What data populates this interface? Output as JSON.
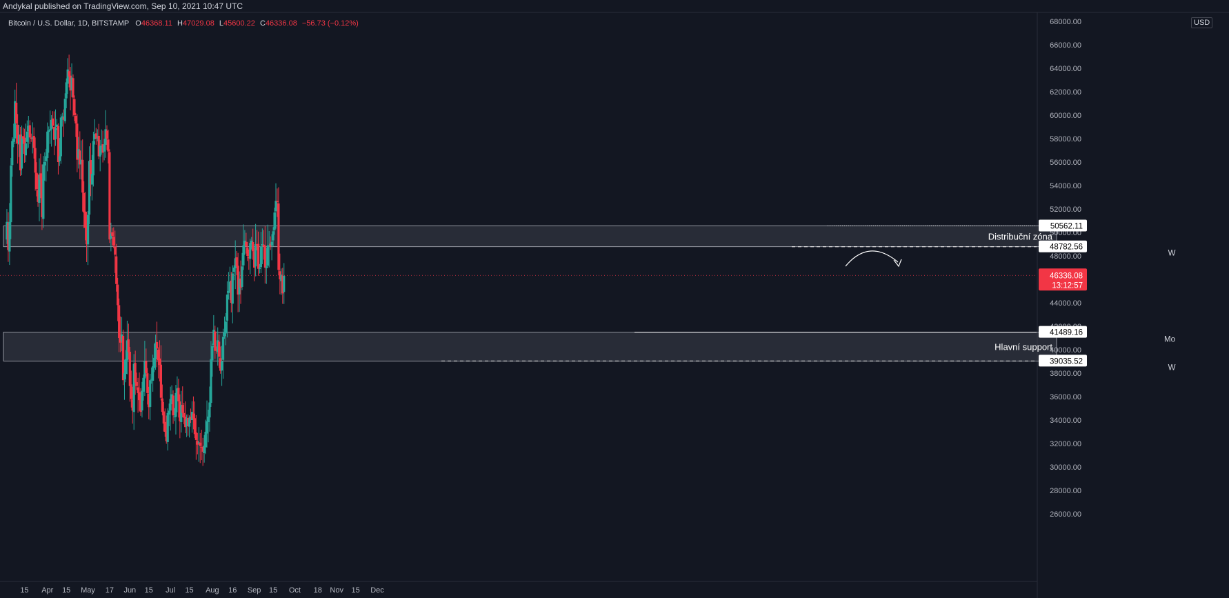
{
  "header": {
    "published_by": "Andykal published on TradingView.com, Sep 10, 2021 10:47 UTC"
  },
  "legend": {
    "symbol": "Bitcoin / U.S. Dollar, 1D, BITSTAMP",
    "open_label": "O",
    "open": "46368.11",
    "high_label": "H",
    "high": "47029.08",
    "low_label": "L",
    "low": "45600.22",
    "close_label": "C",
    "close": "46336.08",
    "change": "−56.73 (−0.12%)"
  },
  "currency": "USD",
  "colors": {
    "background": "#131722",
    "up": "#26a69a",
    "down": "#f23645",
    "zone_fill": "#2a2e39",
    "zone_border": "#b2b5be",
    "price_label_bg": "#ffffff",
    "current_price_bg": "#f23645"
  },
  "chart_data": {
    "type": "candlestick",
    "title": "Bitcoin / U.S. Dollar, 1D, BITSTAMP",
    "ylim": [
      26000,
      68000
    ],
    "y_ticks": [
      26000,
      28000,
      30000,
      32000,
      34000,
      36000,
      38000,
      40000,
      42000,
      44000,
      46000,
      48000,
      50000,
      52000,
      54000,
      56000,
      58000,
      60000,
      62000,
      64000,
      66000,
      68000
    ],
    "x_ticks": [
      {
        "label": "15",
        "date": "2021-03-15"
      },
      {
        "label": "Apr",
        "date": "2021-04-01"
      },
      {
        "label": "15",
        "date": "2021-04-15"
      },
      {
        "label": "May",
        "date": "2021-05-01"
      },
      {
        "label": "17",
        "date": "2021-05-17"
      },
      {
        "label": "Jun",
        "date": "2021-06-01"
      },
      {
        "label": "15",
        "date": "2021-06-15"
      },
      {
        "label": "Jul",
        "date": "2021-07-01"
      },
      {
        "label": "15",
        "date": "2021-07-15"
      },
      {
        "label": "Aug",
        "date": "2021-08-01"
      },
      {
        "label": "16",
        "date": "2021-08-16"
      },
      {
        "label": "Sep",
        "date": "2021-09-01"
      },
      {
        "label": "15",
        "date": "2021-09-15"
      },
      {
        "label": "Oct",
        "date": "2021-10-01"
      },
      {
        "label": "18",
        "date": "2021-10-18"
      },
      {
        "label": "Nov",
        "date": "2021-11-01"
      },
      {
        "label": "15",
        "date": "2021-11-15"
      },
      {
        "label": "Dec",
        "date": "2021-12-01"
      }
    ],
    "anchor_close": [
      49400,
      50900,
      48500,
      50900,
      55700,
      57800,
      58000,
      61200,
      59300,
      57600,
      58300,
      55300,
      58200,
      58000,
      56700,
      57600,
      58600,
      59100,
      58100,
      58000,
      58100,
      57200,
      55100,
      53700,
      52600,
      54900,
      54500,
      51300,
      55800,
      56000,
      56500,
      58600,
      58700,
      58800,
      59600,
      59100,
      57900,
      58900,
      59200,
      56000,
      56500,
      59800,
      59900,
      59600,
      61400,
      62800,
      63900,
      63300,
      62100,
      63200,
      61500,
      60000,
      59300,
      56200,
      57100,
      55800,
      56200,
      53400,
      51700,
      50400,
      49000,
      51500,
      56100,
      54100,
      55000,
      57800,
      58400,
      58000,
      58100,
      56500,
      57400,
      57400,
      56800,
      57500,
      58800,
      58000,
      56900,
      49400,
      49900,
      49700,
      48900,
      48100,
      45600,
      43800,
      41000,
      40600,
      41300,
      37400,
      38000,
      39200,
      40800,
      39800,
      36900,
      35800,
      34800,
      38800,
      37200,
      36900,
      36300,
      35700,
      34700,
      36500,
      37600,
      39000,
      38000,
      36300,
      35100,
      37400,
      37500,
      38600,
      39300,
      40600,
      40100,
      39100,
      38700,
      35900,
      34700,
      33700,
      33000,
      32200,
      34600,
      34800,
      35800,
      36200,
      34400,
      34300,
      36300,
      36700,
      35600,
      33900,
      35300,
      34600,
      34200,
      33400,
      34100,
      33500,
      34200,
      34000,
      34700,
      34100,
      32800,
      32300,
      31900,
      32100,
      31800,
      31700,
      31300,
      31800,
      33000,
      33900,
      34300,
      35500,
      39200,
      40300,
      41700,
      39900,
      39900,
      40800,
      39400,
      38200,
      39000,
      41100,
      41500,
      42400,
      44700,
      45000,
      45800,
      44000,
      46500,
      47000,
      47800,
      47100,
      44700,
      46000,
      45300,
      47100,
      48900,
      49300,
      48800,
      48000,
      47800,
      49100,
      49300,
      48400,
      47000,
      49000,
      48900,
      46900,
      47000,
      48800,
      49000,
      48800,
      47000,
      47100,
      48900,
      48900,
      48800,
      49200,
      50100,
      51700,
      52700,
      52600,
      46800,
      46000,
      46400,
      44800,
      46300
    ]
  },
  "zones": {
    "distribution": {
      "label": "Distribuční zóna",
      "top": 50562.11,
      "bottom": 48782.56,
      "top_label": "50562.11",
      "bottom_label": "48782.56",
      "tag": "W"
    },
    "support": {
      "label": "Hlavní support",
      "top": 41489.16,
      "bottom": 39035.52,
      "top_label": "41489.16",
      "bottom_label": "39035.52",
      "top_tag": "Mo",
      "bottom_tag": "W"
    }
  },
  "current_price": {
    "value": 46336.08,
    "label": "46336.08",
    "countdown": "13:12:57"
  }
}
